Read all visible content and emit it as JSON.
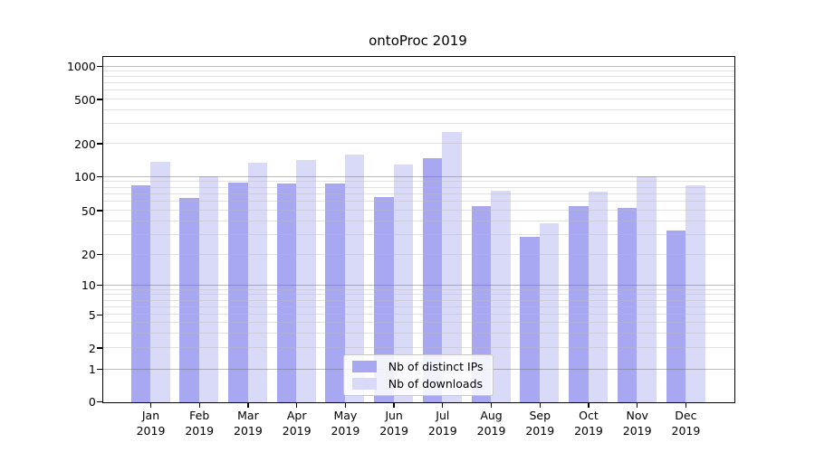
{
  "title": "ontoProc 2019",
  "chart_data": {
    "type": "bar",
    "title": "ontoProc 2019",
    "categories": [
      "Jan",
      "Feb",
      "Mar",
      "Apr",
      "May",
      "Jun",
      "Jul",
      "Aug",
      "Sep",
      "Oct",
      "Nov",
      "Dec"
    ],
    "category_year": "2019",
    "series": [
      {
        "name": "Nb of distinct IPs",
        "color": "#a8a8f2",
        "values": [
          85,
          65,
          90,
          88,
          88,
          66,
          150,
          55,
          29,
          55,
          53,
          33
        ]
      },
      {
        "name": "Nb of downloads",
        "color": "#d9d9f8",
        "values": [
          138,
          102,
          135,
          144,
          160,
          130,
          258,
          76,
          39,
          75,
          101,
          85
        ]
      }
    ],
    "yscale": "symlog",
    "ylim": [
      0,
      1200
    ],
    "y_ticks": [
      0,
      1,
      2,
      5,
      10,
      20,
      50,
      100,
      200,
      500,
      1000
    ],
    "y_tick_labels": [
      "0",
      "1",
      "2",
      "5",
      "10",
      "20",
      "50",
      "100",
      "200",
      "500",
      "1000"
    ],
    "xlabel": "",
    "ylabel": "",
    "grid": "on",
    "legend_position": "lower center"
  },
  "colors": {
    "bar_ips": "#a8a8f2",
    "bar_downloads": "#d9d9f8",
    "grid_major": "#aeaeae",
    "grid_minor": "#e5e5e5",
    "spine": "#000000",
    "text": "#000000",
    "legend_border": "#c9c9c9",
    "legend_bg": "#ffffff"
  },
  "legend": {
    "items": [
      {
        "label": "Nb of distinct IPs"
      },
      {
        "label": "Nb of downloads"
      }
    ]
  }
}
